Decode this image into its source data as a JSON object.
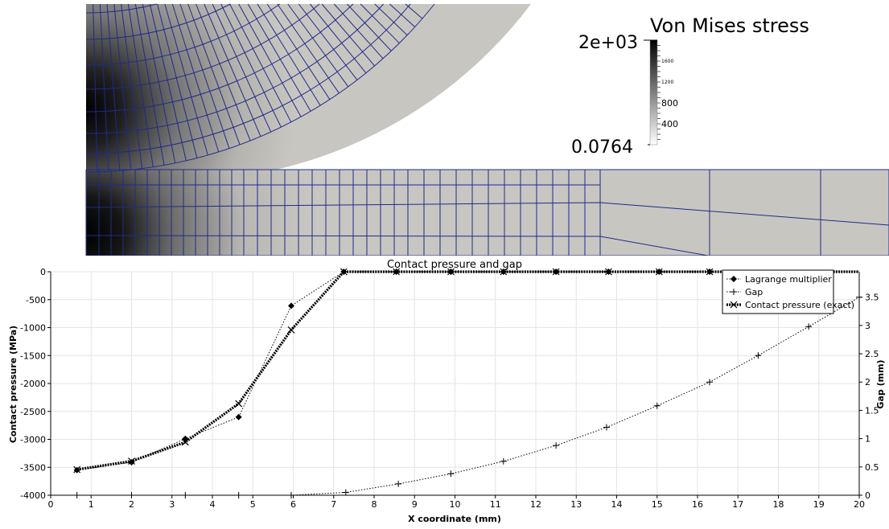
{
  "fem_view": {
    "colorbar": {
      "title": "Von Mises stress",
      "max_label": "2e+03",
      "min_label": "0.0764",
      "tick_labels": [
        "1600",
        "1200",
        "800",
        "400"
      ],
      "tick_values": [
        1600,
        1200,
        800,
        400
      ],
      "range": [
        0.0764,
        2000
      ]
    },
    "colors": {
      "mesh": "#1f2b8a",
      "high_stress": "#000000",
      "low_stress": "#c8c6c1"
    }
  },
  "chart_data": {
    "type": "line",
    "title": "Contact pressure and gap",
    "xlabel": "X coordinate (mm)",
    "ylabel": "Contact pressure (MPa)",
    "y2label": "Gap (mm)",
    "xlim": [
      0,
      20
    ],
    "ylim": [
      -4000,
      0
    ],
    "y2lim": [
      0,
      3.95
    ],
    "x_ticks": [
      0,
      1,
      2,
      3,
      4,
      5,
      6,
      7,
      8,
      9,
      10,
      11,
      12,
      13,
      14,
      15,
      16,
      17,
      18,
      19,
      20
    ],
    "y_ticks": [
      0,
      -500,
      -1000,
      -1500,
      -2000,
      -2500,
      -3000,
      -3500,
      -4000
    ],
    "y2_ticks": [
      0,
      0.5,
      1,
      1.5,
      2,
      2.5,
      3,
      3.5
    ],
    "y2_tick_labels": [
      "0",
      "0.5",
      "1",
      "1.5",
      "2",
      "2.5",
      "3",
      "3.5"
    ],
    "grid": true,
    "legend_position": "top-right",
    "series": [
      {
        "name": "Lagrange multiplier",
        "axis": "left",
        "marker": "diamond",
        "x": [
          0.65,
          2.0,
          3.33,
          4.65,
          5.95,
          7.25,
          8.55,
          9.9,
          11.2,
          12.5,
          13.8,
          15.05,
          16.3
        ],
        "y": [
          -3550,
          -3410,
          -2990,
          -2600,
          -610,
          0,
          0,
          0,
          0,
          0,
          0,
          0,
          0
        ]
      },
      {
        "name": "Gap",
        "axis": "right",
        "marker": "plus",
        "x": [
          0.65,
          2.0,
          3.33,
          4.65,
          5.95,
          7.3,
          8.6,
          9.9,
          11.2,
          12.5,
          13.75,
          15.0,
          16.3,
          17.5,
          18.75,
          20.0
        ],
        "y": [
          0,
          0,
          0,
          0,
          0,
          0.05,
          0.2,
          0.38,
          0.6,
          0.88,
          1.2,
          1.58,
          2.0,
          2.47,
          2.98,
          3.5
        ]
      },
      {
        "name": "Contact pressure (exact)",
        "axis": "left",
        "marker": "x",
        "x": [
          0.65,
          2.0,
          3.33,
          4.65,
          5.95,
          7.25,
          8.55,
          9.9,
          11.2,
          12.5,
          13.8,
          15.05,
          16.3
        ],
        "y": [
          -3540,
          -3390,
          -3050,
          -2360,
          -1040,
          0,
          0,
          0,
          0,
          0,
          0,
          0,
          0
        ]
      }
    ]
  }
}
